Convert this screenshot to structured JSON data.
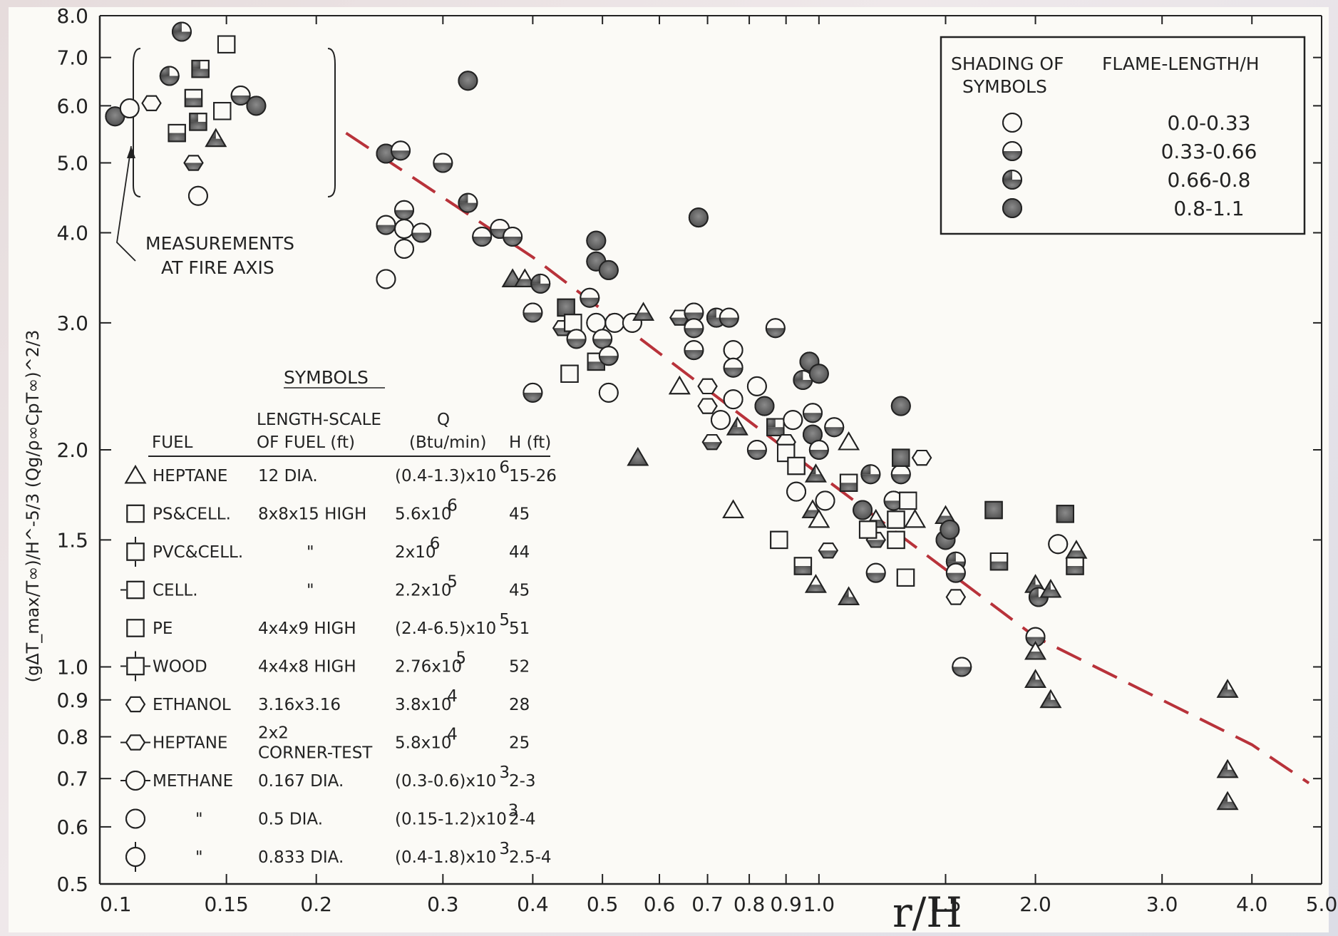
{
  "chart_data": {
    "type": "scatter",
    "xlabel": "r/H",
    "ylabel": "(gΔT_max/T∞)/H^-5/3 (Qg/ρ∞CpT∞)^2/3",
    "xscale": "log",
    "yscale": "log",
    "xlim": [
      0.1,
      5.0
    ],
    "ylim": [
      0.5,
      8.0
    ],
    "x_ticks": [
      {
        "v": 0.1,
        "t": "0.1"
      },
      {
        "v": 0.15,
        "t": "0.15"
      },
      {
        "v": 0.2,
        "t": "0.2"
      },
      {
        "v": 0.3,
        "t": "0.3"
      },
      {
        "v": 0.4,
        "t": "0.4"
      },
      {
        "v": 0.5,
        "t": "0.5"
      },
      {
        "v": 0.6,
        "t": "0.6"
      },
      {
        "v": 0.7,
        "t": "0.7"
      },
      {
        "v": 0.8,
        "t": "0.8"
      },
      {
        "v": 0.9,
        "t": "0.9"
      },
      {
        "v": 1.0,
        "t": "1.0"
      },
      {
        "v": 1.5,
        "t": "1.5"
      },
      {
        "v": 2.0,
        "t": "2.0"
      },
      {
        "v": 3.0,
        "t": "3.0"
      },
      {
        "v": 4.0,
        "t": "4.0"
      },
      {
        "v": 5.0,
        "t": "5.0"
      }
    ],
    "y_ticks": [
      {
        "v": 0.5,
        "t": "0.5"
      },
      {
        "v": 0.6,
        "t": "0.6"
      },
      {
        "v": 0.7,
        "t": "0.7"
      },
      {
        "v": 0.8,
        "t": "0.8"
      },
      {
        "v": 0.9,
        "t": "0.9"
      },
      {
        "v": 1.0,
        "t": "1.0"
      },
      {
        "v": 1.5,
        "t": "1.5"
      },
      {
        "v": 2.0,
        "t": "2.0"
      },
      {
        "v": 3.0,
        "t": "3.0"
      },
      {
        "v": 4.0,
        "t": "4.0"
      },
      {
        "v": 5.0,
        "t": "5.0"
      },
      {
        "v": 6.0,
        "t": "6.0"
      },
      {
        "v": 7.0,
        "t": "7.0"
      },
      {
        "v": 8.0,
        "t": "8.0"
      }
    ],
    "grid": false,
    "fit_line": {
      "style": "dashed",
      "color": "#b8323a",
      "points": [
        [
          0.22,
          5.5
        ],
        [
          0.4,
          3.7
        ],
        [
          1.0,
          1.85
        ],
        [
          2.0,
          1.1
        ],
        [
          4.0,
          0.78
        ],
        [
          4.8,
          0.69
        ]
      ]
    },
    "annotation_fire_axis": {
      "label_lines": [
        "MEASUREMENTS",
        "AT FIRE AXIS"
      ]
    },
    "shading_legend": {
      "position": "top-right",
      "header_left": [
        "SHADING OF",
        "SYMBOLS"
      ],
      "header_right": "FLAME-LENGTH/H",
      "items": [
        {
          "shade": "open",
          "range": "0.0-0.33"
        },
        {
          "shade": "half",
          "range": "0.33-0.66"
        },
        {
          "shade": "three-quarter",
          "range": "0.66-0.8"
        },
        {
          "shade": "full",
          "range": "0.8-1.1"
        }
      ]
    },
    "symbols_table": {
      "title": "SYMBOLS",
      "headers": {
        "fuel": "FUEL",
        "length": [
          "LENGTH-SCALE",
          "OF FUEL (ft)"
        ],
        "q": [
          "Q",
          "(Btu/min)"
        ],
        "h": "H (ft)"
      },
      "rows": [
        {
          "sym": "triangle",
          "fuel": "HEPTANE",
          "length": [
            "12 DIA."
          ],
          "q": "(0.4-1.3)x10",
          "qexp": "6",
          "h": "15-26"
        },
        {
          "sym": "square",
          "fuel": "PS&CELL.",
          "length": [
            "8x8x15 HIGH"
          ],
          "q": "5.6x10",
          "qexp": "6",
          "h": "45"
        },
        {
          "sym": "square-tb",
          "fuel": "PVC&CELL.",
          "length": [
            "\""
          ],
          "q": "2x10",
          "qexp": "6",
          "h": "44"
        },
        {
          "sym": "square-l",
          "fuel": "CELL.",
          "length": [
            "\""
          ],
          "q": "2.2x10",
          "qexp": "5",
          "h": "45"
        },
        {
          "sym": "square-open",
          "fuel": "PE",
          "length": [
            "4x4x9 HIGH"
          ],
          "q": "(2.4-6.5)x10",
          "qexp": "5",
          "h": "51"
        },
        {
          "sym": "square-cross",
          "fuel": "WOOD",
          "length": [
            "4x4x8 HIGH"
          ],
          "q": "2.76x10",
          "qexp": "5",
          "h": "52"
        },
        {
          "sym": "hexagon",
          "fuel": "ETHANOL",
          "length": [
            "3.16x3.16"
          ],
          "q": "3.8x10",
          "qexp": "4",
          "h": "28"
        },
        {
          "sym": "hexagon-lr",
          "fuel": "HEPTANE",
          "length": [
            "2x2",
            "CORNER-TEST"
          ],
          "q": "5.8x10",
          "qexp": "4",
          "h": "25"
        },
        {
          "sym": "circle-lr",
          "fuel": "METHANE",
          "length": [
            "0.167 DIA."
          ],
          "q": "(0.3-0.6)x10",
          "qexp": "3",
          "h": "2-3"
        },
        {
          "sym": "circle",
          "fuel": "\"",
          "length": [
            "0.5 DIA."
          ],
          "q": "(0.15-1.2)x10",
          "qexp": "3",
          "h": "2-4"
        },
        {
          "sym": "circle-tb",
          "fuel": "\"",
          "length": [
            "0.833 DIA."
          ],
          "q": "(0.4-1.8)x10",
          "qexp": "3",
          "h": "2.5-4"
        }
      ]
    },
    "points": [
      {
        "x": 0.105,
        "y": 5.8,
        "s": "circle",
        "f": "full"
      },
      {
        "x": 0.11,
        "y": 5.95,
        "s": "circle",
        "f": "open"
      },
      {
        "x": 0.118,
        "y": 6.05,
        "s": "hexagon",
        "f": "open"
      },
      {
        "x": 0.125,
        "y": 6.6,
        "s": "circle",
        "f": "three-quarter"
      },
      {
        "x": 0.13,
        "y": 7.6,
        "s": "circle",
        "f": "three-quarter"
      },
      {
        "x": 0.128,
        "y": 5.5,
        "s": "square",
        "f": "half"
      },
      {
        "x": 0.135,
        "y": 6.15,
        "s": "square",
        "f": "half"
      },
      {
        "x": 0.138,
        "y": 6.75,
        "s": "square",
        "f": "three-quarter"
      },
      {
        "x": 0.137,
        "y": 5.7,
        "s": "square",
        "f": "three-quarter"
      },
      {
        "x": 0.135,
        "y": 5.0,
        "s": "hexagon",
        "f": "half"
      },
      {
        "x": 0.137,
        "y": 4.5,
        "s": "circle",
        "f": "open"
      },
      {
        "x": 0.145,
        "y": 5.4,
        "s": "triangle",
        "f": "three-quarter"
      },
      {
        "x": 0.148,
        "y": 5.9,
        "s": "square",
        "f": "open"
      },
      {
        "x": 0.15,
        "y": 7.3,
        "s": "square",
        "f": "open"
      },
      {
        "x": 0.157,
        "y": 6.2,
        "s": "circle",
        "f": "half"
      },
      {
        "x": 0.165,
        "y": 6.0,
        "s": "circle",
        "f": "full"
      },
      {
        "x": 0.25,
        "y": 5.15,
        "s": "circle",
        "f": "full"
      },
      {
        "x": 0.262,
        "y": 5.2,
        "s": "circle",
        "f": "half"
      },
      {
        "x": 0.25,
        "y": 4.1,
        "s": "circle",
        "f": "half"
      },
      {
        "x": 0.265,
        "y": 4.3,
        "s": "circle",
        "f": "half"
      },
      {
        "x": 0.265,
        "y": 4.05,
        "s": "circle",
        "f": "open"
      },
      {
        "x": 0.265,
        "y": 3.8,
        "s": "circle",
        "f": "open"
      },
      {
        "x": 0.28,
        "y": 4.0,
        "s": "circle",
        "f": "half"
      },
      {
        "x": 0.25,
        "y": 3.45,
        "s": "circle",
        "f": "open"
      },
      {
        "x": 0.3,
        "y": 5.0,
        "s": "circle",
        "f": "half"
      },
      {
        "x": 0.325,
        "y": 6.5,
        "s": "circle",
        "f": "full"
      },
      {
        "x": 0.325,
        "y": 4.4,
        "s": "circle",
        "f": "three-quarter"
      },
      {
        "x": 0.34,
        "y": 3.95,
        "s": "circle",
        "f": "half"
      },
      {
        "x": 0.36,
        "y": 4.05,
        "s": "circle",
        "f": "half"
      },
      {
        "x": 0.375,
        "y": 3.95,
        "s": "circle",
        "f": "half"
      },
      {
        "x": 0.375,
        "y": 3.45,
        "s": "triangle",
        "f": "full"
      },
      {
        "x": 0.39,
        "y": 3.45,
        "s": "triangle",
        "f": "half"
      },
      {
        "x": 0.41,
        "y": 3.4,
        "s": "circle",
        "f": "three-quarter"
      },
      {
        "x": 0.4,
        "y": 3.1,
        "s": "circle",
        "f": "half"
      },
      {
        "x": 0.4,
        "y": 2.4,
        "s": "circle",
        "f": "half"
      },
      {
        "x": 0.44,
        "y": 2.95,
        "s": "hexagon",
        "f": "half"
      },
      {
        "x": 0.445,
        "y": 3.15,
        "s": "square",
        "f": "full"
      },
      {
        "x": 0.455,
        "y": 3.0,
        "s": "square",
        "f": "open"
      },
      {
        "x": 0.46,
        "y": 2.85,
        "s": "circle",
        "f": "half"
      },
      {
        "x": 0.45,
        "y": 2.55,
        "s": "square",
        "f": "open"
      },
      {
        "x": 0.48,
        "y": 3.25,
        "s": "circle",
        "f": "half"
      },
      {
        "x": 0.49,
        "y": 3.9,
        "s": "circle",
        "f": "full"
      },
      {
        "x": 0.49,
        "y": 3.65,
        "s": "circle",
        "f": "full"
      },
      {
        "x": 0.51,
        "y": 3.55,
        "s": "circle",
        "f": "full"
      },
      {
        "x": 0.49,
        "y": 3.0,
        "s": "circle",
        "f": "open"
      },
      {
        "x": 0.5,
        "y": 2.85,
        "s": "circle",
        "f": "half"
      },
      {
        "x": 0.49,
        "y": 2.65,
        "s": "square",
        "f": "half"
      },
      {
        "x": 0.51,
        "y": 2.7,
        "s": "circle",
        "f": "half"
      },
      {
        "x": 0.52,
        "y": 3.0,
        "s": "circle",
        "f": "open"
      },
      {
        "x": 0.51,
        "y": 2.4,
        "s": "circle",
        "f": "open"
      },
      {
        "x": 0.55,
        "y": 3.0,
        "s": "circle",
        "f": "open"
      },
      {
        "x": 0.57,
        "y": 3.1,
        "s": "triangle",
        "f": "half"
      },
      {
        "x": 0.56,
        "y": 1.95,
        "s": "triangle",
        "f": "full"
      },
      {
        "x": 0.64,
        "y": 3.05,
        "s": "hexagon",
        "f": "half"
      },
      {
        "x": 0.67,
        "y": 3.1,
        "s": "circle",
        "f": "half"
      },
      {
        "x": 0.67,
        "y": 2.95,
        "s": "circle",
        "f": "half"
      },
      {
        "x": 0.68,
        "y": 4.2,
        "s": "circle",
        "f": "full"
      },
      {
        "x": 0.67,
        "y": 2.75,
        "s": "circle",
        "f": "half"
      },
      {
        "x": 0.64,
        "y": 2.45,
        "s": "triangle",
        "f": "open"
      },
      {
        "x": 0.7,
        "y": 2.45,
        "s": "hexagon",
        "f": "open"
      },
      {
        "x": 0.72,
        "y": 3.05,
        "s": "circle",
        "f": "three-quarter"
      },
      {
        "x": 0.75,
        "y": 3.05,
        "s": "circle",
        "f": "half"
      },
      {
        "x": 0.76,
        "y": 2.75,
        "s": "circle",
        "f": "open"
      },
      {
        "x": 0.76,
        "y": 2.6,
        "s": "circle",
        "f": "half"
      },
      {
        "x": 0.7,
        "y": 2.3,
        "s": "hexagon",
        "f": "open"
      },
      {
        "x": 0.71,
        "y": 2.05,
        "s": "hexagon",
        "f": "half"
      },
      {
        "x": 0.73,
        "y": 2.2,
        "s": "circle",
        "f": "open"
      },
      {
        "x": 0.76,
        "y": 2.35,
        "s": "circle",
        "f": "open"
      },
      {
        "x": 0.77,
        "y": 2.15,
        "s": "triangle",
        "f": "three-quarter"
      },
      {
        "x": 0.76,
        "y": 1.65,
        "s": "triangle",
        "f": "open"
      },
      {
        "x": 0.82,
        "y": 2.45,
        "s": "circle",
        "f": "open"
      },
      {
        "x": 0.84,
        "y": 2.3,
        "s": "circle",
        "f": "full"
      },
      {
        "x": 0.82,
        "y": 2.0,
        "s": "circle",
        "f": "half"
      },
      {
        "x": 0.87,
        "y": 2.95,
        "s": "circle",
        "f": "half"
      },
      {
        "x": 0.87,
        "y": 2.15,
        "s": "square",
        "f": "three-quarter"
      },
      {
        "x": 0.9,
        "y": 2.05,
        "s": "hexagon",
        "f": "open"
      },
      {
        "x": 0.9,
        "y": 1.98,
        "s": "square",
        "f": "open"
      },
      {
        "x": 0.92,
        "y": 2.2,
        "s": "circle",
        "f": "open"
      },
      {
        "x": 0.93,
        "y": 1.9,
        "s": "square",
        "f": "open"
      },
      {
        "x": 0.93,
        "y": 1.75,
        "s": "circle",
        "f": "open"
      },
      {
        "x": 0.88,
        "y": 1.5,
        "s": "square",
        "f": "open"
      },
      {
        "x": 0.95,
        "y": 2.5,
        "s": "circle",
        "f": "three-quarter"
      },
      {
        "x": 0.97,
        "y": 2.65,
        "s": "circle",
        "f": "full"
      },
      {
        "x": 1.0,
        "y": 2.55,
        "s": "circle",
        "f": "full"
      },
      {
        "x": 0.98,
        "y": 2.25,
        "s": "circle",
        "f": "half"
      },
      {
        "x": 0.98,
        "y": 2.1,
        "s": "circle",
        "f": "full"
      },
      {
        "x": 0.99,
        "y": 1.85,
        "s": "triangle",
        "f": "three-quarter"
      },
      {
        "x": 1.0,
        "y": 2.0,
        "s": "circle",
        "f": "half"
      },
      {
        "x": 1.02,
        "y": 1.7,
        "s": "circle",
        "f": "open"
      },
      {
        "x": 0.98,
        "y": 1.65,
        "s": "triangle",
        "f": "half"
      },
      {
        "x": 1.0,
        "y": 1.6,
        "s": "triangle",
        "f": "open"
      },
      {
        "x": 0.95,
        "y": 1.38,
        "s": "square",
        "f": "half"
      },
      {
        "x": 0.99,
        "y": 1.3,
        "s": "triangle",
        "f": "half"
      },
      {
        "x": 1.03,
        "y": 1.45,
        "s": "hexagon",
        "f": "half"
      },
      {
        "x": 1.05,
        "y": 2.15,
        "s": "circle",
        "f": "half"
      },
      {
        "x": 1.1,
        "y": 2.05,
        "s": "triangle",
        "f": "open"
      },
      {
        "x": 1.1,
        "y": 1.8,
        "s": "square",
        "f": "half"
      },
      {
        "x": 1.15,
        "y": 1.65,
        "s": "circle",
        "f": "full"
      },
      {
        "x": 1.18,
        "y": 1.85,
        "s": "circle",
        "f": "three-quarter"
      },
      {
        "x": 1.2,
        "y": 1.6,
        "s": "triangle",
        "f": "half"
      },
      {
        "x": 1.2,
        "y": 1.5,
        "s": "hexagon",
        "f": "half"
      },
      {
        "x": 1.17,
        "y": 1.55,
        "s": "square",
        "f": "open"
      },
      {
        "x": 1.1,
        "y": 1.25,
        "s": "triangle",
        "f": "three-quarter"
      },
      {
        "x": 1.2,
        "y": 1.35,
        "s": "circle",
        "f": "half"
      },
      {
        "x": 1.27,
        "y": 1.7,
        "s": "circle",
        "f": "half"
      },
      {
        "x": 1.28,
        "y": 1.6,
        "s": "square",
        "f": "open"
      },
      {
        "x": 1.28,
        "y": 1.5,
        "s": "square",
        "f": "open"
      },
      {
        "x": 1.3,
        "y": 1.85,
        "s": "circle",
        "f": "half"
      },
      {
        "x": 1.3,
        "y": 1.95,
        "s": "square",
        "f": "full"
      },
      {
        "x": 1.3,
        "y": 2.3,
        "s": "circle",
        "f": "full"
      },
      {
        "x": 1.33,
        "y": 1.7,
        "s": "square",
        "f": "open"
      },
      {
        "x": 1.32,
        "y": 1.33,
        "s": "square",
        "f": "open"
      },
      {
        "x": 1.36,
        "y": 1.6,
        "s": "triangle",
        "f": "open"
      },
      {
        "x": 1.39,
        "y": 1.95,
        "s": "hexagon",
        "f": "open"
      },
      {
        "x": 1.5,
        "y": 1.5,
        "s": "circle",
        "f": "full"
      },
      {
        "x": 1.5,
        "y": 1.62,
        "s": "triangle",
        "f": "half"
      },
      {
        "x": 1.52,
        "y": 1.55,
        "s": "circle",
        "f": "full"
      },
      {
        "x": 1.55,
        "y": 1.4,
        "s": "circle",
        "f": "three-quarter"
      },
      {
        "x": 1.55,
        "y": 1.35,
        "s": "circle",
        "f": "half"
      },
      {
        "x": 1.55,
        "y": 1.25,
        "s": "hexagon",
        "f": "open"
      },
      {
        "x": 1.58,
        "y": 1.0,
        "s": "circle",
        "f": "half"
      },
      {
        "x": 1.75,
        "y": 1.65,
        "s": "square",
        "f": "full"
      },
      {
        "x": 1.78,
        "y": 1.4,
        "s": "square",
        "f": "half"
      },
      {
        "x": 2.0,
        "y": 1.1,
        "s": "circle",
        "f": "half"
      },
      {
        "x": 2.0,
        "y": 1.05,
        "s": "triangle",
        "f": "half"
      },
      {
        "x": 2.0,
        "y": 1.3,
        "s": "triangle",
        "f": "three-quarter"
      },
      {
        "x": 2.02,
        "y": 1.25,
        "s": "circle",
        "f": "three-quarter"
      },
      {
        "x": 2.0,
        "y": 0.96,
        "s": "triangle",
        "f": "three-quarter"
      },
      {
        "x": 2.1,
        "y": 1.28,
        "s": "triangle",
        "f": "three-quarter"
      },
      {
        "x": 2.1,
        "y": 0.9,
        "s": "triangle",
        "f": "three-quarter"
      },
      {
        "x": 2.15,
        "y": 1.48,
        "s": "circle",
        "f": "open"
      },
      {
        "x": 2.2,
        "y": 1.63,
        "s": "square",
        "f": "full"
      },
      {
        "x": 2.28,
        "y": 1.45,
        "s": "triangle",
        "f": "half"
      },
      {
        "x": 2.27,
        "y": 1.38,
        "s": "square",
        "f": "half"
      },
      {
        "x": 3.7,
        "y": 0.93,
        "s": "triangle",
        "f": "three-quarter"
      },
      {
        "x": 3.7,
        "y": 0.72,
        "s": "triangle",
        "f": "three-quarter"
      },
      {
        "x": 3.7,
        "y": 0.65,
        "s": "triangle",
        "f": "three-quarter"
      }
    ]
  }
}
